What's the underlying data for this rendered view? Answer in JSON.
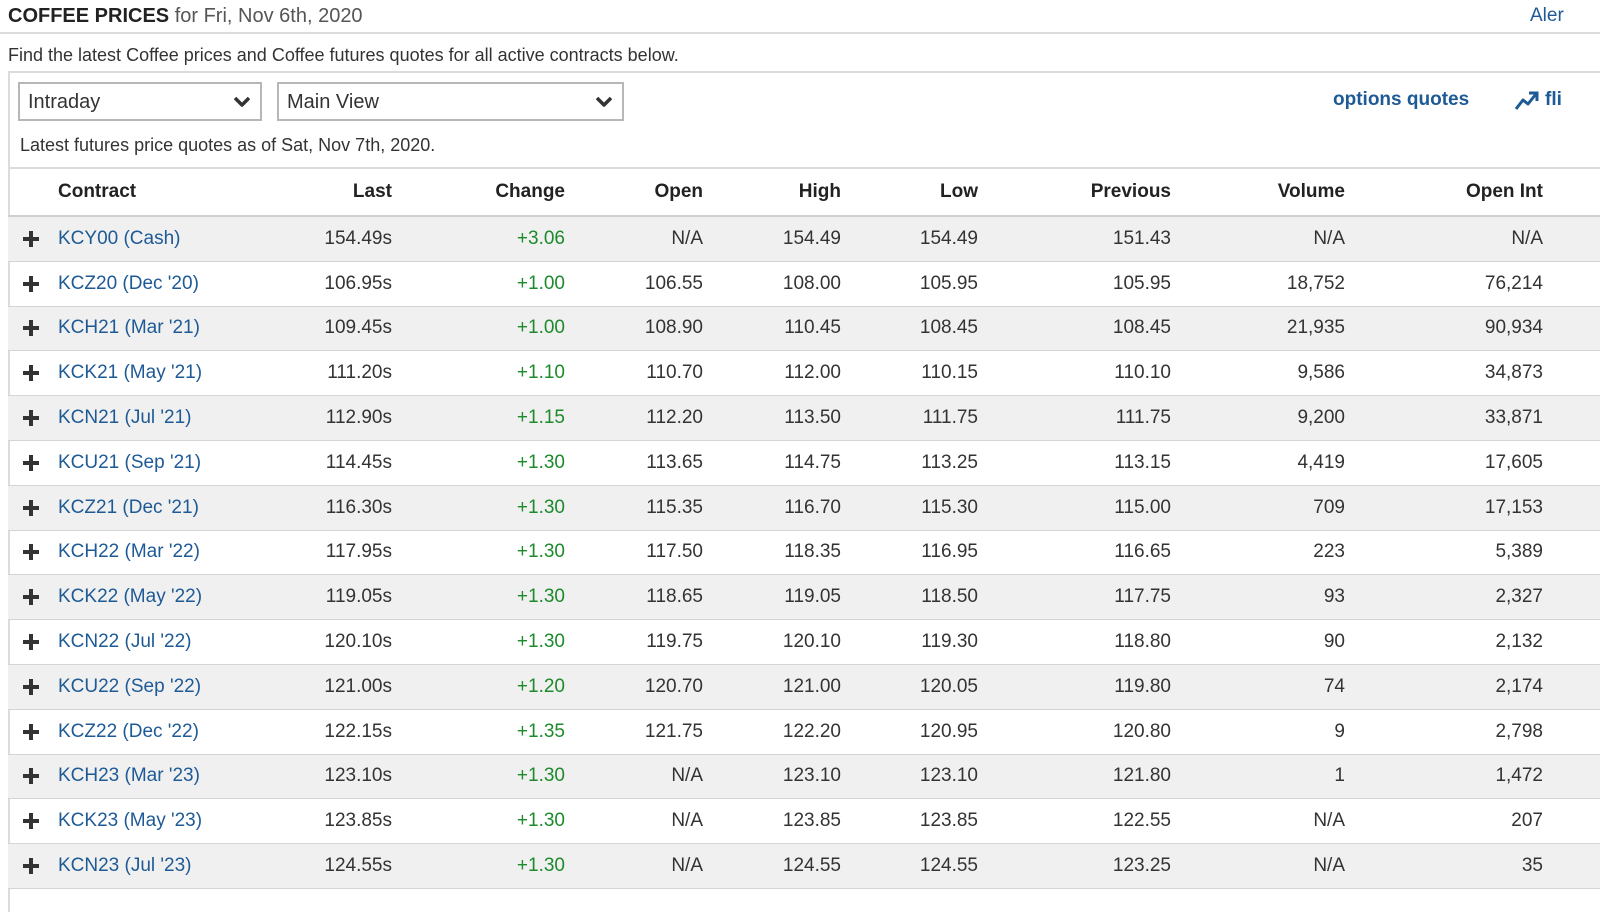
{
  "header": {
    "title_strong": "COFFEE PRICES",
    "title_date": " for Fri, Nov 6th, 2020",
    "alerts_link": "Aler"
  },
  "intro_text": "Find the latest Coffee prices and Coffee futures quotes for all active contracts below.",
  "controls": {
    "period_select": "Intraday",
    "view_select": "Main View",
    "options_link": "options quotes",
    "flipcharts_link": "fli",
    "flipcharts_icon": "trending-up-icon",
    "dropdown_icon": "chevron-down-icon"
  },
  "asof_text": "Latest futures price quotes as of Sat, Nov 7th, 2020.",
  "colors": {
    "link": "#1e5a96",
    "positive_change": "#1d8a2c",
    "row_alt_bg": "#f0f0f0"
  },
  "table": {
    "columns": [
      "Contract",
      "Last",
      "Change",
      "Open",
      "High",
      "Low",
      "Previous",
      "Volume",
      "Open Int"
    ],
    "rows": [
      {
        "contract": "KCY00 (Cash)",
        "last": "154.49s",
        "change": "+3.06",
        "open": "N/A",
        "high": "154.49",
        "low": "154.49",
        "previous": "151.43",
        "volume": "N/A",
        "open_int": "N/A"
      },
      {
        "contract": "KCZ20 (Dec '20)",
        "last": "106.95s",
        "change": "+1.00",
        "open": "106.55",
        "high": "108.00",
        "low": "105.95",
        "previous": "105.95",
        "volume": "18,752",
        "open_int": "76,214"
      },
      {
        "contract": "KCH21 (Mar '21)",
        "last": "109.45s",
        "change": "+1.00",
        "open": "108.90",
        "high": "110.45",
        "low": "108.45",
        "previous": "108.45",
        "volume": "21,935",
        "open_int": "90,934"
      },
      {
        "contract": "KCK21 (May '21)",
        "last": "111.20s",
        "change": "+1.10",
        "open": "110.70",
        "high": "112.00",
        "low": "110.15",
        "previous": "110.10",
        "volume": "9,586",
        "open_int": "34,873"
      },
      {
        "contract": "KCN21 (Jul '21)",
        "last": "112.90s",
        "change": "+1.15",
        "open": "112.20",
        "high": "113.50",
        "low": "111.75",
        "previous": "111.75",
        "volume": "9,200",
        "open_int": "33,871"
      },
      {
        "contract": "KCU21 (Sep '21)",
        "last": "114.45s",
        "change": "+1.30",
        "open": "113.65",
        "high": "114.75",
        "low": "113.25",
        "previous": "113.15",
        "volume": "4,419",
        "open_int": "17,605"
      },
      {
        "contract": "KCZ21 (Dec '21)",
        "last": "116.30s",
        "change": "+1.30",
        "open": "115.35",
        "high": "116.70",
        "low": "115.30",
        "previous": "115.00",
        "volume": "709",
        "open_int": "17,153"
      },
      {
        "contract": "KCH22 (Mar '22)",
        "last": "117.95s",
        "change": "+1.30",
        "open": "117.50",
        "high": "118.35",
        "low": "116.95",
        "previous": "116.65",
        "volume": "223",
        "open_int": "5,389"
      },
      {
        "contract": "KCK22 (May '22)",
        "last": "119.05s",
        "change": "+1.30",
        "open": "118.65",
        "high": "119.05",
        "low": "118.50",
        "previous": "117.75",
        "volume": "93",
        "open_int": "2,327"
      },
      {
        "contract": "KCN22 (Jul '22)",
        "last": "120.10s",
        "change": "+1.30",
        "open": "119.75",
        "high": "120.10",
        "low": "119.30",
        "previous": "118.80",
        "volume": "90",
        "open_int": "2,132"
      },
      {
        "contract": "KCU22 (Sep '22)",
        "last": "121.00s",
        "change": "+1.20",
        "open": "120.70",
        "high": "121.00",
        "low": "120.05",
        "previous": "119.80",
        "volume": "74",
        "open_int": "2,174"
      },
      {
        "contract": "KCZ22 (Dec '22)",
        "last": "122.15s",
        "change": "+1.35",
        "open": "121.75",
        "high": "122.20",
        "low": "120.95",
        "previous": "120.80",
        "volume": "9",
        "open_int": "2,798"
      },
      {
        "contract": "KCH23 (Mar '23)",
        "last": "123.10s",
        "change": "+1.30",
        "open": "N/A",
        "high": "123.10",
        "low": "123.10",
        "previous": "121.80",
        "volume": "1",
        "open_int": "1,472"
      },
      {
        "contract": "KCK23 (May '23)",
        "last": "123.85s",
        "change": "+1.30",
        "open": "N/A",
        "high": "123.85",
        "low": "123.85",
        "previous": "122.55",
        "volume": "N/A",
        "open_int": "207"
      },
      {
        "contract": "KCN23 (Jul '23)",
        "last": "124.55s",
        "change": "+1.30",
        "open": "N/A",
        "high": "124.55",
        "low": "124.55",
        "previous": "123.25",
        "volume": "N/A",
        "open_int": "35"
      }
    ]
  }
}
